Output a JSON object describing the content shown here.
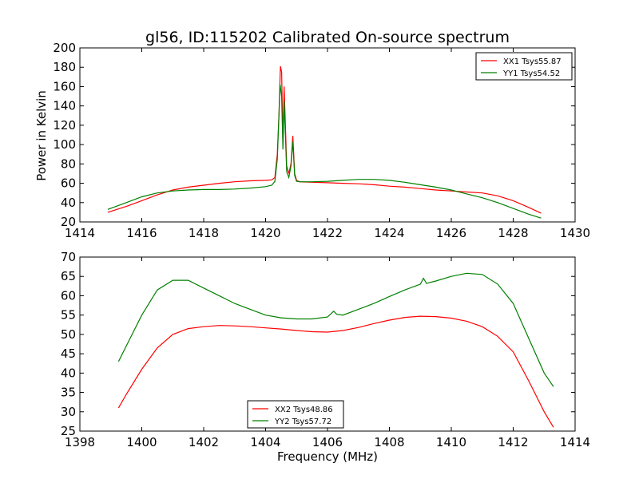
{
  "figure": {
    "title": "gl56, ID:115202 Calibrated On-source spectrum",
    "ylabel": "Power in Kelvin",
    "xlabel": "Frequency (MHz)"
  },
  "chart_data": [
    {
      "type": "line",
      "xlim": [
        1414,
        1430
      ],
      "ylim": [
        20,
        200
      ],
      "xticks": [
        1414,
        1416,
        1418,
        1420,
        1422,
        1424,
        1426,
        1428,
        1430
      ],
      "yticks": [
        20,
        40,
        60,
        80,
        100,
        120,
        140,
        160,
        180,
        200
      ],
      "legend_position": "top-right",
      "series": [
        {
          "name": "XX1 Tsys55.87",
          "color": "#ff0000",
          "points": [
            [
              1414.9,
              30
            ],
            [
              1415.5,
              36
            ],
            [
              1416,
              42
            ],
            [
              1416.5,
              48
            ],
            [
              1417,
              53
            ],
            [
              1417.5,
              56
            ],
            [
              1418,
              58
            ],
            [
              1418.5,
              60
            ],
            [
              1419,
              61.5
            ],
            [
              1419.5,
              62.5
            ],
            [
              1420,
              63
            ],
            [
              1420.2,
              63.5
            ],
            [
              1420.3,
              66
            ],
            [
              1420.38,
              90
            ],
            [
              1420.43,
              130
            ],
            [
              1420.48,
              181
            ],
            [
              1420.52,
              175
            ],
            [
              1420.56,
              100
            ],
            [
              1420.6,
              160
            ],
            [
              1420.64,
              120
            ],
            [
              1420.68,
              78
            ],
            [
              1420.75,
              70
            ],
            [
              1420.82,
              80
            ],
            [
              1420.88,
              109
            ],
            [
              1420.94,
              70
            ],
            [
              1421,
              63
            ],
            [
              1421.1,
              61.5
            ],
            [
              1421.5,
              61
            ],
            [
              1422,
              60.5
            ],
            [
              1422.5,
              60
            ],
            [
              1423,
              59.5
            ],
            [
              1423.5,
              58.5
            ],
            [
              1424,
              57
            ],
            [
              1424.5,
              56
            ],
            [
              1425,
              54.5
            ],
            [
              1425.5,
              53
            ],
            [
              1426,
              52
            ],
            [
              1426.5,
              51
            ],
            [
              1427,
              50
            ],
            [
              1427.5,
              47
            ],
            [
              1428,
              42
            ],
            [
              1428.5,
              35
            ],
            [
              1428.9,
              29
            ]
          ]
        },
        {
          "name": "YY1 Tsys54.52",
          "color": "#008000",
          "points": [
            [
              1414.9,
              33
            ],
            [
              1415.5,
              40
            ],
            [
              1416,
              46
            ],
            [
              1416.5,
              50
            ],
            [
              1417,
              52
            ],
            [
              1417.5,
              53
            ],
            [
              1418,
              53.5
            ],
            [
              1418.5,
              53.5
            ],
            [
              1419,
              54
            ],
            [
              1419.5,
              55
            ],
            [
              1420,
              56.5
            ],
            [
              1420.2,
              58
            ],
            [
              1420.3,
              62
            ],
            [
              1420.38,
              85
            ],
            [
              1420.43,
              130
            ],
            [
              1420.47,
              162
            ],
            [
              1420.52,
              150
            ],
            [
              1420.56,
              95
            ],
            [
              1420.6,
              145
            ],
            [
              1420.64,
              110
            ],
            [
              1420.68,
              72
            ],
            [
              1420.75,
              66
            ],
            [
              1420.82,
              78
            ],
            [
              1420.88,
              103
            ],
            [
              1420.94,
              68
            ],
            [
              1421,
              62
            ],
            [
              1421.1,
              61.5
            ],
            [
              1421.5,
              61.5
            ],
            [
              1422,
              62
            ],
            [
              1422.5,
              63
            ],
            [
              1423,
              64
            ],
            [
              1423.5,
              64
            ],
            [
              1424,
              63
            ],
            [
              1424.5,
              61
            ],
            [
              1425,
              58.5
            ],
            [
              1425.5,
              56
            ],
            [
              1426,
              53
            ],
            [
              1426.5,
              49
            ],
            [
              1427,
              45
            ],
            [
              1427.5,
              40
            ],
            [
              1428,
              34
            ],
            [
              1428.5,
              28
            ],
            [
              1428.9,
              24
            ]
          ]
        }
      ]
    },
    {
      "type": "line",
      "xlim": [
        1398,
        1414
      ],
      "ylim": [
        25,
        70
      ],
      "xticks": [
        1398,
        1400,
        1402,
        1404,
        1406,
        1408,
        1410,
        1412,
        1414
      ],
      "yticks": [
        25,
        30,
        35,
        40,
        45,
        50,
        55,
        60,
        65,
        70
      ],
      "legend_position": "bottom-center",
      "series": [
        {
          "name": "XX2 Tsys48.86",
          "color": "#ff0000",
          "points": [
            [
              1399.25,
              31
            ],
            [
              1399.5,
              34.5
            ],
            [
              1400,
              41
            ],
            [
              1400.5,
              46.5
            ],
            [
              1401,
              50
            ],
            [
              1401.5,
              51.5
            ],
            [
              1402,
              52
            ],
            [
              1402.5,
              52.3
            ],
            [
              1403,
              52.2
            ],
            [
              1403.5,
              52
            ],
            [
              1404,
              51.7
            ],
            [
              1404.5,
              51.4
            ],
            [
              1405,
              51
            ],
            [
              1405.5,
              50.7
            ],
            [
              1406,
              50.6
            ],
            [
              1406.5,
              51
            ],
            [
              1407,
              51.8
            ],
            [
              1407.5,
              52.8
            ],
            [
              1408,
              53.7
            ],
            [
              1408.5,
              54.4
            ],
            [
              1409,
              54.7
            ],
            [
              1409.5,
              54.6
            ],
            [
              1410,
              54.2
            ],
            [
              1410.5,
              53.4
            ],
            [
              1411,
              52
            ],
            [
              1411.5,
              49.5
            ],
            [
              1412,
              45.5
            ],
            [
              1412.5,
              38
            ],
            [
              1413,
              30
            ],
            [
              1413.3,
              26
            ]
          ]
        },
        {
          "name": "YY2 Tsys57.72",
          "color": "#008000",
          "points": [
            [
              1399.25,
              43
            ],
            [
              1399.5,
              47
            ],
            [
              1400,
              55
            ],
            [
              1400.5,
              61.5
            ],
            [
              1401,
              64
            ],
            [
              1401.5,
              64
            ],
            [
              1402,
              62
            ],
            [
              1402.5,
              60
            ],
            [
              1403,
              58
            ],
            [
              1403.5,
              56.5
            ],
            [
              1404,
              55
            ],
            [
              1404.5,
              54.3
            ],
            [
              1405,
              54
            ],
            [
              1405.5,
              54
            ],
            [
              1406,
              54.5
            ],
            [
              1406.2,
              56
            ],
            [
              1406.3,
              55.2
            ],
            [
              1406.5,
              55
            ],
            [
              1407,
              56.5
            ],
            [
              1407.5,
              58
            ],
            [
              1408,
              59.8
            ],
            [
              1408.5,
              61.5
            ],
            [
              1409,
              63
            ],
            [
              1409.1,
              64.5
            ],
            [
              1409.2,
              63.2
            ],
            [
              1409.5,
              63.8
            ],
            [
              1410,
              65
            ],
            [
              1410.5,
              65.8
            ],
            [
              1411,
              65.5
            ],
            [
              1411.5,
              63
            ],
            [
              1412,
              58
            ],
            [
              1412.5,
              49
            ],
            [
              1413,
              40
            ],
            [
              1413.3,
              36.5
            ]
          ]
        }
      ]
    }
  ]
}
